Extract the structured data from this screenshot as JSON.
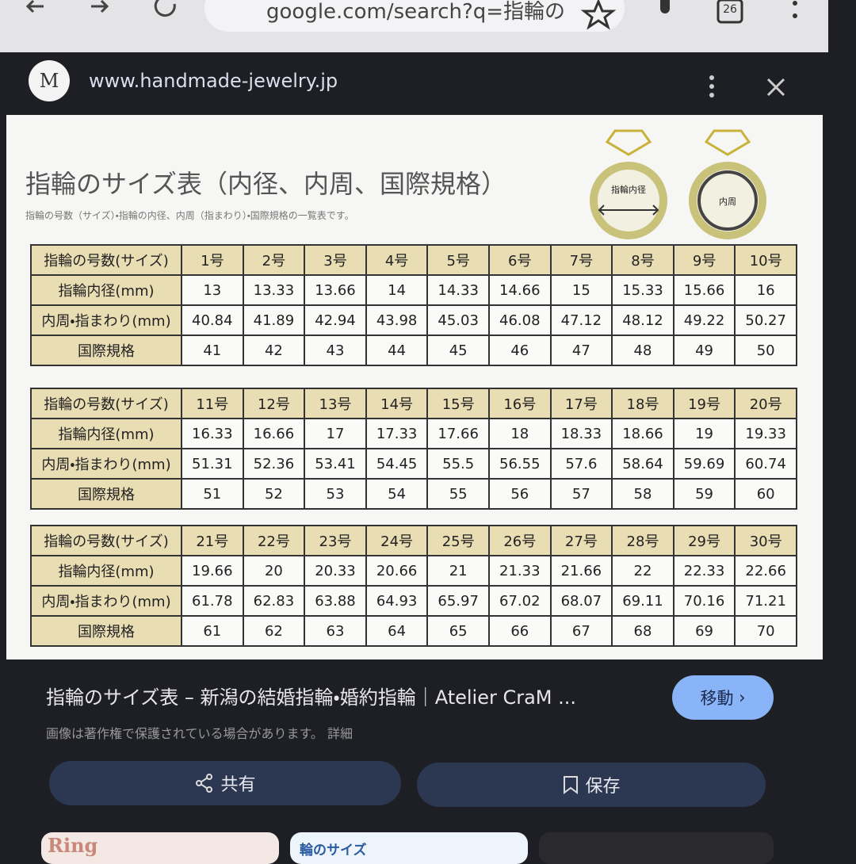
{
  "browser": {
    "url": "google.com/search?q=指輪の",
    "tab_count": "26"
  },
  "viewer": {
    "logo": "M",
    "site": "www.handmade-jewelry.jp"
  },
  "image": {
    "title": "指輪のサイズ表（内径、内周、国際規格）",
    "subtitle": "指輪の号数（サイズ）・指輪の内径、内周（指まわり）・国際規格の一覧表です。",
    "ring_labels": [
      "指輪内径",
      "内周"
    ],
    "row_labels": [
      "指輪の号数(サイズ)",
      "指輪内径(mm)",
      "内周・指まわり(mm)",
      "国際規格"
    ],
    "tables": [
      {
        "sizes": [
          "1号",
          "2号",
          "3号",
          "4号",
          "5号",
          "6号",
          "7号",
          "8号",
          "9号",
          "10号"
        ],
        "rows": [
          [
            13,
            13.33,
            13.66,
            14,
            14.33,
            14.66,
            15,
            15.33,
            15.66,
            16
          ],
          [
            40.84,
            41.89,
            42.94,
            43.98,
            45.03,
            46.08,
            47.12,
            48.12,
            49.22,
            50.27
          ],
          [
            41,
            42,
            43,
            44,
            45,
            46,
            47,
            48,
            49,
            50
          ]
        ]
      },
      {
        "sizes": [
          "11号",
          "12号",
          "13号",
          "14号",
          "15号",
          "16号",
          "17号",
          "18号",
          "19号",
          "20号"
        ],
        "rows": [
          [
            16.33,
            16.66,
            17,
            17.33,
            17.66,
            18,
            18.33,
            18.66,
            19,
            19.33
          ],
          [
            51.31,
            52.36,
            53.41,
            54.45,
            55.5,
            56.55,
            57.6,
            58.64,
            59.69,
            60.74
          ],
          [
            51,
            52,
            53,
            54,
            55,
            56,
            57,
            58,
            59,
            60
          ]
        ]
      },
      {
        "sizes": [
          "21号",
          "22号",
          "23号",
          "24号",
          "25号",
          "26号",
          "27号",
          "28号",
          "29号",
          "30号"
        ],
        "rows": [
          [
            19.66,
            20,
            20.33,
            20.66,
            21,
            21.33,
            21.66,
            22,
            22.33,
            22.66
          ],
          [
            61.78,
            62.83,
            63.88,
            64.93,
            65.97,
            67.02,
            68.07,
            69.11,
            70.16,
            71.21
          ],
          [
            61,
            62,
            63,
            64,
            65,
            66,
            67,
            68,
            69,
            70
          ]
        ]
      }
    ]
  },
  "caption": {
    "title": "指輪のサイズ表 – 新潟の結婚指輪・婚約指輪｜Atelier CraM ...",
    "go": "移動",
    "note": "画像は著作権で保護されている場合があります。",
    "details": "詳細"
  },
  "actions": {
    "share": "共有",
    "save": "保存"
  },
  "thumbnails": [
    "Ring",
    "輪のサイズ"
  ]
}
